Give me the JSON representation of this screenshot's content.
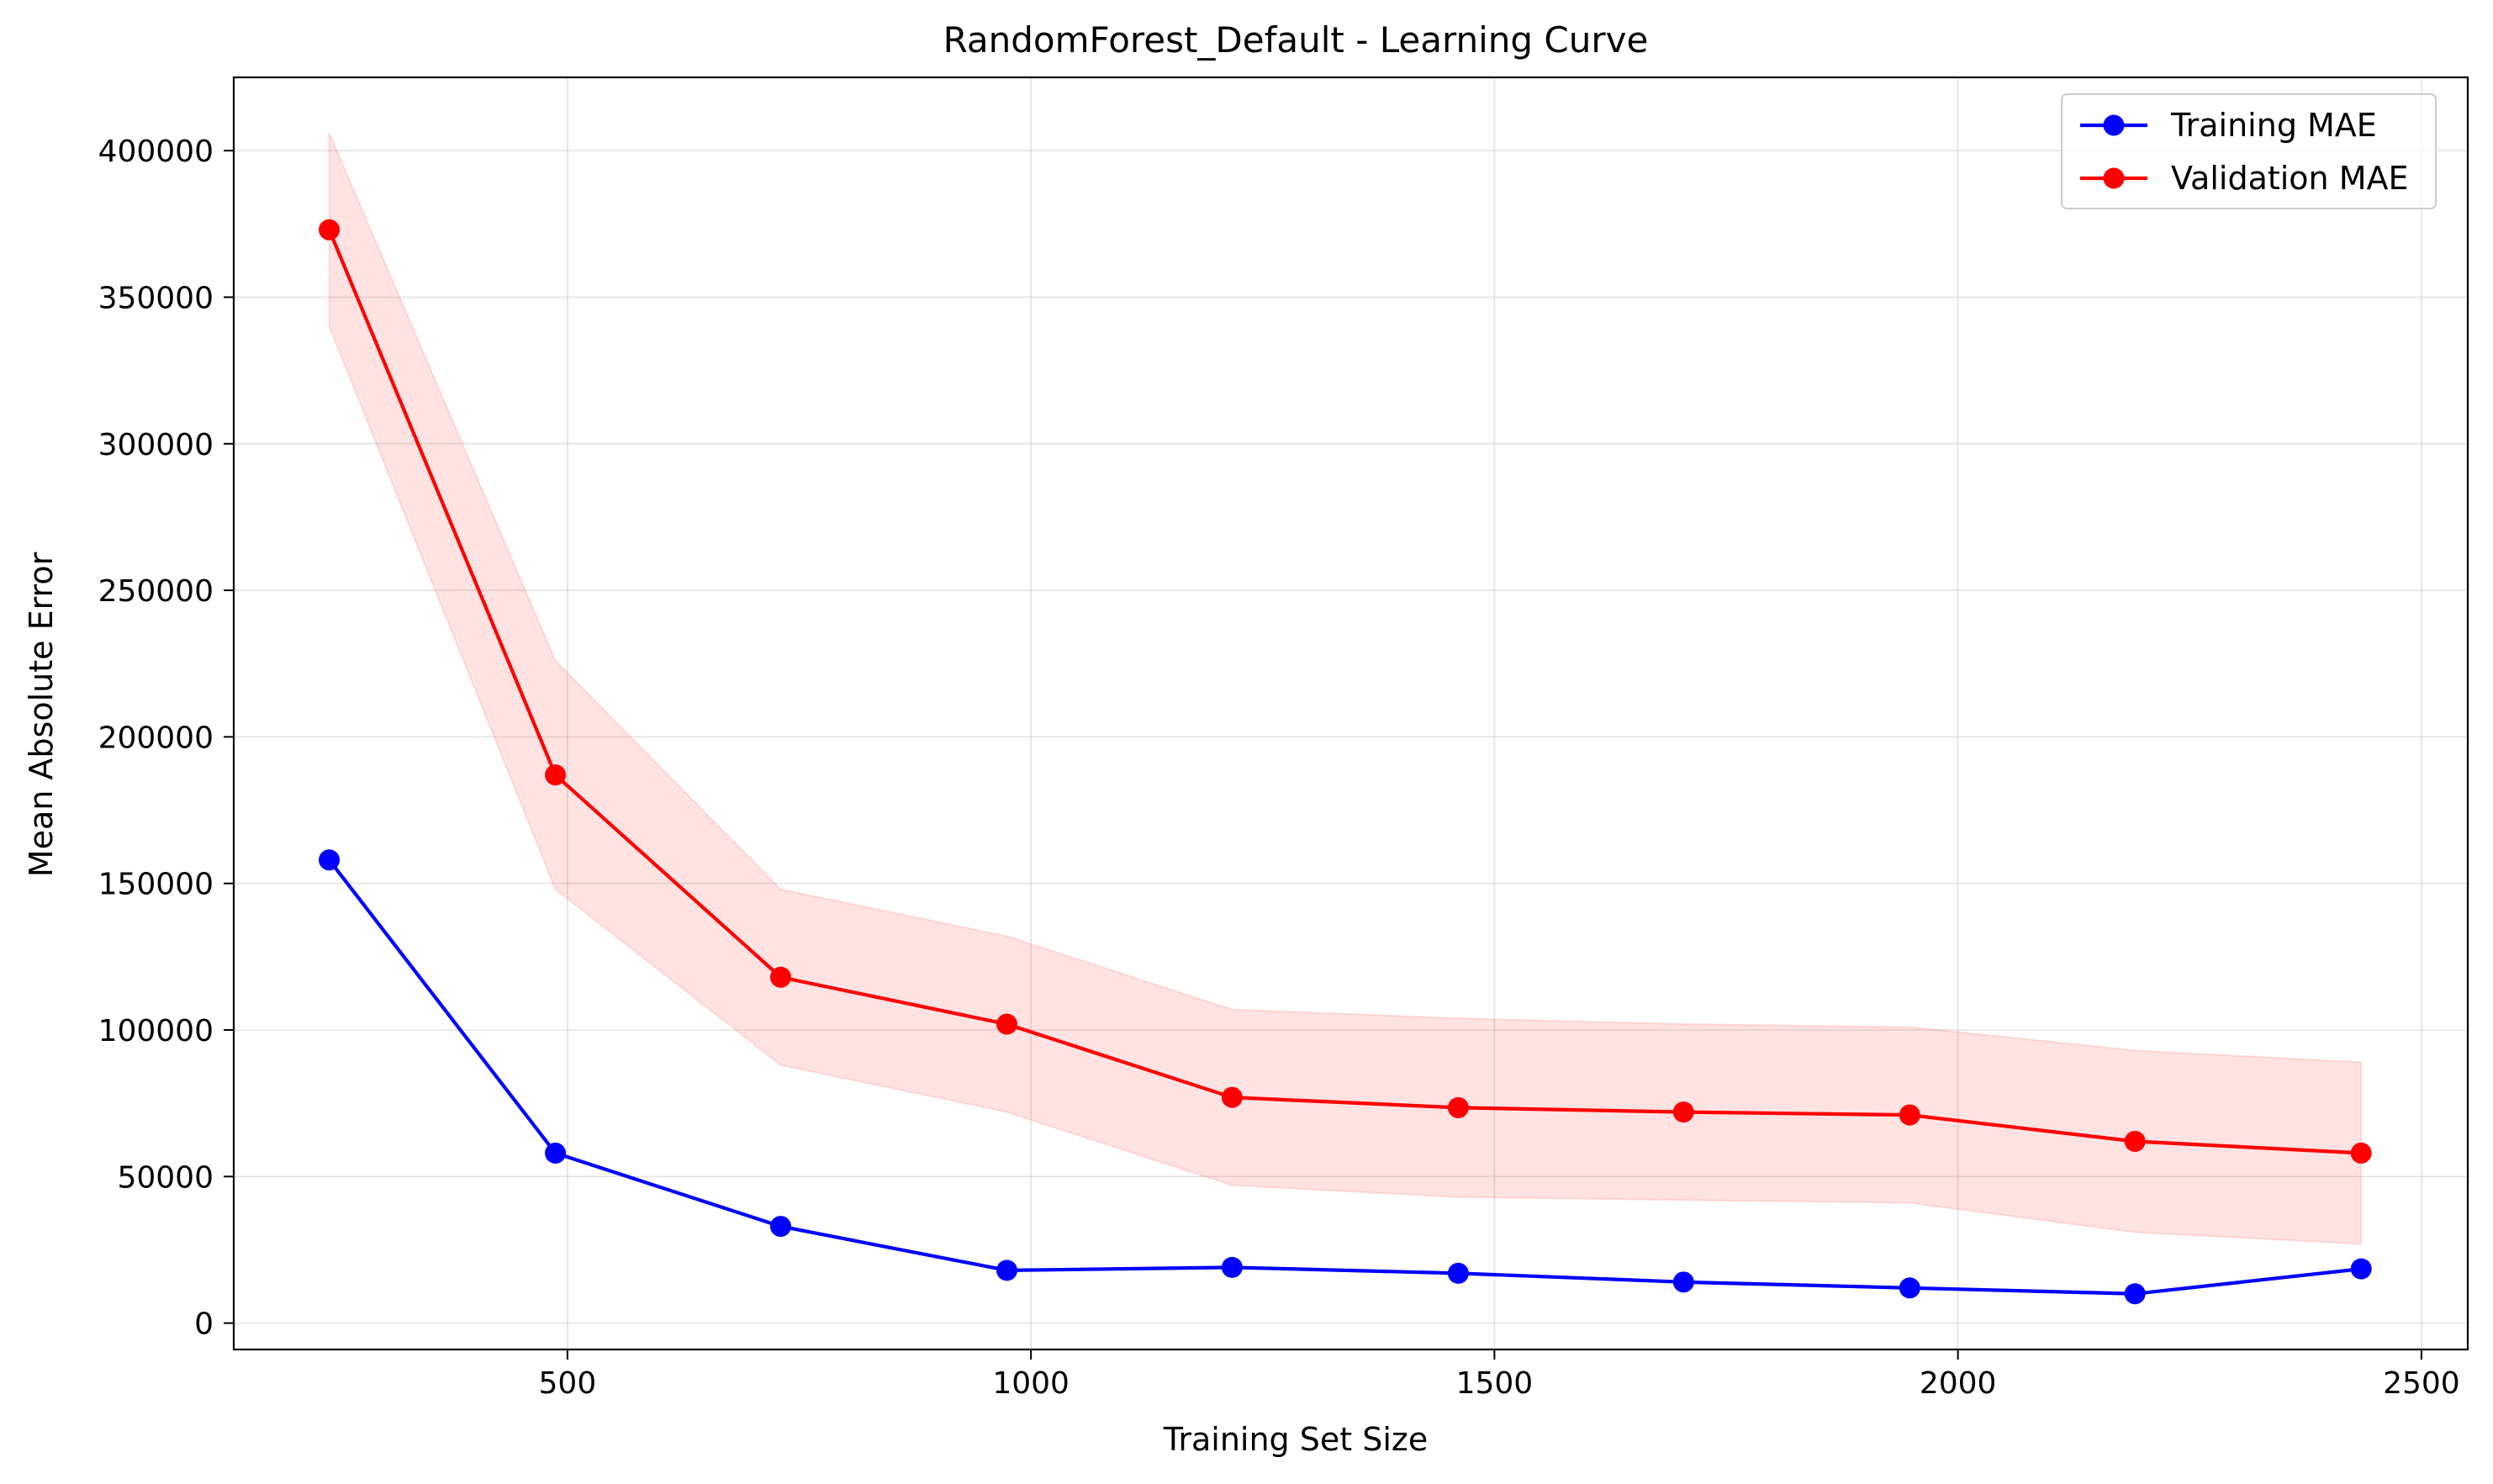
{
  "chart_data": {
    "type": "line",
    "title": "RandomForest_Default - Learning Curve",
    "xlabel": "Training Set Size",
    "ylabel": "Mean Absolute Error",
    "xlim": [
      140,
      2550
    ],
    "ylim": [
      -9000,
      425000
    ],
    "xticks": [
      500,
      1000,
      1500,
      2000,
      2500
    ],
    "yticks": [
      0,
      50000,
      100000,
      150000,
      200000,
      250000,
      300000,
      350000,
      400000
    ],
    "grid": true,
    "legend_position": "upper-right",
    "x": [
      243,
      487,
      730,
      974,
      1217,
      1461,
      1704,
      1948,
      2191,
      2435
    ],
    "series": [
      {
        "name": "Training MAE",
        "color": "#0000ff",
        "marker": "circle",
        "values": [
          158000,
          58000,
          33000,
          18000,
          19000,
          17000,
          14000,
          12000,
          10000,
          18500
        ]
      },
      {
        "name": "Validation MAE",
        "color": "#ff0000",
        "marker": "circle",
        "values": [
          373000,
          187000,
          118000,
          102000,
          77000,
          73500,
          72000,
          71000,
          62000,
          58000
        ],
        "band": {
          "color": "#ff0000",
          "opacity": 0.11,
          "lower": [
            340000,
            148000,
            88000,
            72000,
            47000,
            43000,
            42000,
            41000,
            31000,
            27000
          ],
          "upper": [
            406000,
            226000,
            148000,
            132000,
            107000,
            104000,
            102000,
            101000,
            93000,
            89000
          ]
        }
      }
    ]
  }
}
